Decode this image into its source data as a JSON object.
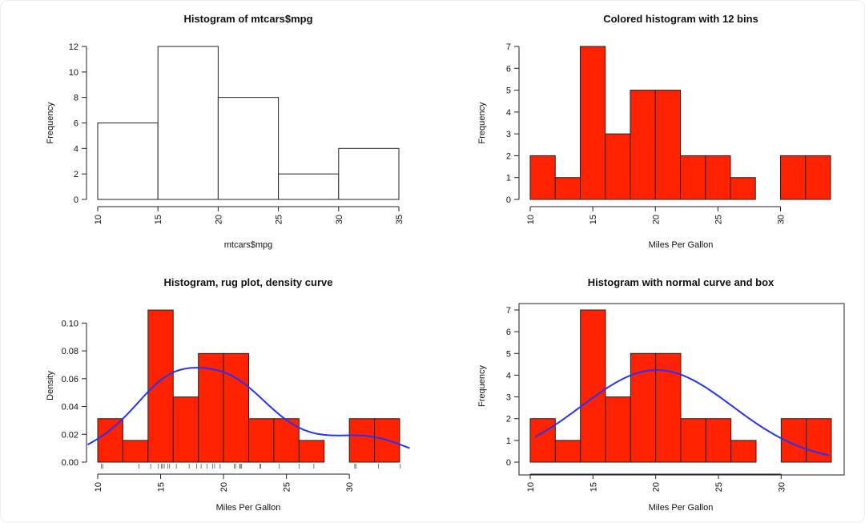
{
  "chart_data": [
    {
      "type": "bar",
      "title": "Histogram of mtcars$mpg",
      "xlabel": "mtcars$mpg",
      "ylabel": "Frequency",
      "breaks": [
        10,
        15,
        20,
        25,
        30,
        35
      ],
      "values": [
        6,
        12,
        8,
        2,
        4
      ],
      "fill": "#ffffff",
      "xticks": [
        10,
        15,
        20,
        25,
        30,
        35
      ],
      "yticks": [
        0,
        2,
        4,
        6,
        8,
        10,
        12
      ],
      "ytick_labels": [
        "0",
        "2",
        "4",
        "6",
        "8",
        "10",
        "12"
      ],
      "xlim": [
        10,
        35
      ],
      "ylim": [
        0,
        12
      ],
      "box": false
    },
    {
      "type": "bar",
      "title": "Colored histogram with 12 bins",
      "xlabel": "Miles Per Gallon",
      "ylabel": "Frequency",
      "breaks": [
        10,
        12,
        14,
        16,
        18,
        20,
        22,
        24,
        26,
        28,
        30,
        32,
        34
      ],
      "values": [
        2,
        1,
        7,
        3,
        5,
        5,
        2,
        2,
        1,
        0,
        2,
        2
      ],
      "fill": "#ff2200",
      "xticks": [
        10,
        15,
        20,
        25,
        30
      ],
      "yticks": [
        0,
        1,
        2,
        3,
        4,
        5,
        6,
        7
      ],
      "ytick_labels": [
        "0",
        "1",
        "2",
        "3",
        "4",
        "5",
        "6",
        "7"
      ],
      "xlim": [
        10,
        34
      ],
      "ylim": [
        0,
        7
      ],
      "box": false
    },
    {
      "type": "bar",
      "title": "Histogram, rug plot, density curve",
      "xlabel": "Miles Per Gallon",
      "ylabel": "Density",
      "breaks": [
        10,
        12,
        14,
        16,
        18,
        20,
        22,
        24,
        26,
        28,
        30,
        32,
        34
      ],
      "values": [
        0.03125,
        0.015625,
        0.109375,
        0.046875,
        0.078125,
        0.078125,
        0.03125,
        0.03125,
        0.015625,
        0,
        0.03125,
        0.03125
      ],
      "fill": "#ff2200",
      "xticks": [
        10,
        15,
        20,
        25,
        30
      ],
      "yticks": [
        0,
        0.02,
        0.04,
        0.06,
        0.08,
        0.1
      ],
      "ytick_labels": [
        "0.00",
        "0.02",
        "0.04",
        "0.06",
        "0.08",
        "0.10"
      ],
      "xlim": [
        10,
        34
      ],
      "ylim": [
        0,
        0.11
      ],
      "overlay": {
        "type": "density",
        "color": "#2233ff",
        "bandwidth": 2.477
      },
      "rug": [
        21,
        21,
        22.8,
        21.4,
        18.7,
        18.1,
        14.3,
        24.4,
        22.8,
        19.2,
        17.8,
        16.4,
        17.3,
        15.2,
        10.4,
        10.4,
        14.7,
        32.4,
        30.4,
        33.9,
        21.5,
        15.5,
        15.2,
        13.3,
        19.2,
        27.3,
        26,
        30.4,
        15.8,
        19.7,
        15,
        21.4
      ],
      "box": false
    },
    {
      "type": "bar",
      "title": "Histogram with normal curve and box",
      "xlabel": "Miles Per Gallon",
      "ylabel": "Frequency",
      "breaks": [
        10,
        12,
        14,
        16,
        18,
        20,
        22,
        24,
        26,
        28,
        30,
        32,
        34
      ],
      "values": [
        2,
        1,
        7,
        3,
        5,
        5,
        2,
        2,
        1,
        0,
        2,
        2
      ],
      "fill": "#ff2200",
      "xticks": [
        10,
        15,
        20,
        25,
        30
      ],
      "yticks": [
        0,
        1,
        2,
        3,
        4,
        5,
        6,
        7
      ],
      "ytick_labels": [
        "0",
        "1",
        "2",
        "3",
        "4",
        "5",
        "6",
        "7"
      ],
      "xlim": [
        10,
        34
      ],
      "ylim": [
        0,
        7
      ],
      "overlay": {
        "type": "normal",
        "color": "#2233ff",
        "mean": 20.09,
        "sd": 6.027,
        "n": 32,
        "binwidth": 2,
        "from": 10.4,
        "to": 33.9
      },
      "box": true
    }
  ]
}
